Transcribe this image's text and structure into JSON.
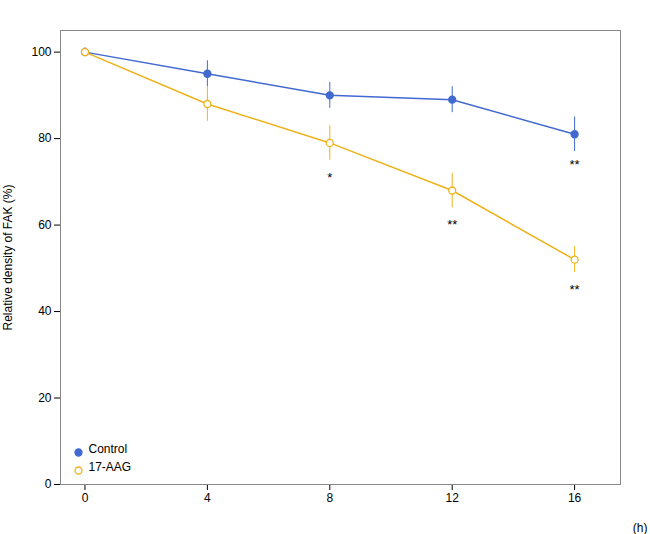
{
  "chart_data": {
    "type": "line",
    "xlabel": "(h)",
    "ylabel": "Relative density of FAK (%)",
    "x": [
      0,
      4,
      8,
      12,
      16
    ],
    "series": [
      {
        "name": "Control",
        "values": [
          100,
          95,
          90,
          89,
          81
        ],
        "errors": [
          1,
          3,
          3,
          3,
          4
        ],
        "marker": "circle",
        "line_style": "solid"
      },
      {
        "name": "17-AAG",
        "values": [
          100,
          88,
          79,
          68,
          52
        ],
        "errors": [
          1,
          4,
          4,
          4,
          3
        ],
        "marker": "open_circle",
        "line_style": "solid"
      }
    ],
    "xlim": [
      -0.8,
      17.5
    ],
    "xticks": [
      0,
      4,
      8,
      12,
      16
    ],
    "ylim": [
      0,
      105
    ],
    "yticks": [
      0,
      20,
      40,
      60,
      80,
      100
    ],
    "annotations": [
      {
        "x": 8,
        "y": 71,
        "text": "*"
      },
      {
        "x": 12,
        "y": 60,
        "text": "**"
      },
      {
        "x": 16,
        "y": 45,
        "text": "**"
      },
      {
        "x": 16,
        "y": 74,
        "text": "**"
      }
    ],
    "grid": false,
    "legend": "lower left"
  }
}
